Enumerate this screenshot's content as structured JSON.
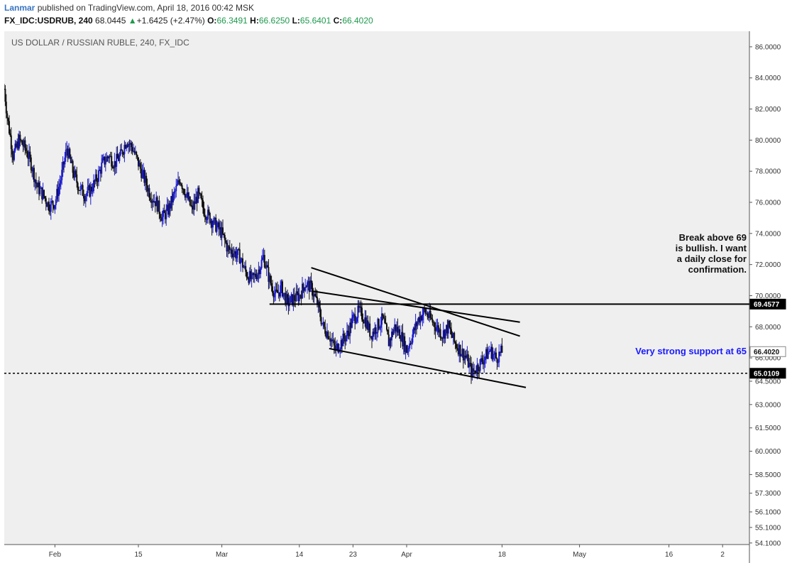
{
  "header": {
    "author": "Lanmar",
    "published": "published on TradingView.com, April 18, 2016 00:42 MSK",
    "symbol": "FX_IDC:USDRUB, 240",
    "last": "68.0445",
    "change_arrow": "▲",
    "change": "+1.6425 (+2.47%)",
    "o_label": "O:",
    "o_value": "66.3491",
    "h_label": "H:",
    "h_value": "66.6250",
    "l_label": "L:",
    "l_value": "65.6401",
    "c_label": "C:",
    "c_value": "66.4020"
  },
  "chart_data": {
    "type": "candlestick",
    "title": "US DOLLAR / RUSSIAN RUBLE, 240, FX_IDC",
    "ylim": [
      54.0,
      87.0
    ],
    "y_ticks": [
      {
        "value": 86.0,
        "label": "86.0000"
      },
      {
        "value": 84.0,
        "label": "84.0000"
      },
      {
        "value": 82.0,
        "label": "82.0000"
      },
      {
        "value": 80.0,
        "label": "80.0000"
      },
      {
        "value": 78.0,
        "label": "78.0000"
      },
      {
        "value": 76.0,
        "label": "76.0000"
      },
      {
        "value": 74.0,
        "label": "74.0000"
      },
      {
        "value": 72.0,
        "label": "72.0000"
      },
      {
        "value": 70.0,
        "label": "70.0000"
      },
      {
        "value": 68.0,
        "label": "68.0000"
      },
      {
        "value": 66.0,
        "label": "66.0000"
      },
      {
        "value": 64.5,
        "label": "64.5000"
      },
      {
        "value": 63.0,
        "label": "63.0000"
      },
      {
        "value": 61.5,
        "label": "61.5000"
      },
      {
        "value": 60.0,
        "label": "60.0000"
      },
      {
        "value": 58.5,
        "label": "58.5000"
      },
      {
        "value": 57.3,
        "label": "57.3000"
      },
      {
        "value": 56.1,
        "label": "56.1000"
      },
      {
        "value": 55.1,
        "label": "55.1000"
      },
      {
        "value": 54.1,
        "label": "54.1000"
      }
    ],
    "x_ticks": [
      {
        "label": "Feb",
        "day": 3
      },
      {
        "label": "15",
        "day": 17
      },
      {
        "label": "Mar",
        "day": 31
      },
      {
        "label": "14",
        "day": 44
      },
      {
        "label": "23",
        "day": 53
      },
      {
        "label": "Apr",
        "day": 62
      },
      {
        "label": "18",
        "day": 78
      },
      {
        "label": "May",
        "day": 91
      },
      {
        "label": "16",
        "day": 106
      },
      {
        "label": "2",
        "day": 115
      }
    ],
    "x_day_range": [
      -5.5,
      119.5
    ],
    "price_path": [
      [
        -5.5,
        83.3
      ],
      [
        -5,
        81.5
      ],
      [
        -4,
        79.0
      ],
      [
        -3,
        80.0
      ],
      [
        -2,
        79.5
      ],
      [
        -1,
        78.5
      ],
      [
        0,
        77.0
      ],
      [
        1,
        76.5
      ],
      [
        2,
        75.8
      ],
      [
        3,
        76.0
      ],
      [
        4,
        77.5
      ],
      [
        5,
        79.5
      ],
      [
        6,
        78.0
      ],
      [
        7,
        77.0
      ],
      [
        8,
        76.5
      ],
      [
        9,
        76.8
      ],
      [
        10,
        77.5
      ],
      [
        11,
        78.5
      ],
      [
        12,
        79.0
      ],
      [
        13,
        78.5
      ],
      [
        14,
        79.0
      ],
      [
        15,
        80.0
      ],
      [
        16,
        79.5
      ],
      [
        17,
        78.5
      ],
      [
        18,
        77.5
      ],
      [
        19,
        76.5
      ],
      [
        20,
        76.0
      ],
      [
        21,
        75.0
      ],
      [
        22,
        75.5
      ],
      [
        23,
        76.5
      ],
      [
        24,
        77.5
      ],
      [
        25,
        76.5
      ],
      [
        26,
        75.5
      ],
      [
        27,
        76.5
      ],
      [
        28,
        75.5
      ],
      [
        29,
        75.0
      ],
      [
        30,
        74.5
      ],
      [
        31,
        74.0
      ],
      [
        32,
        73.0
      ],
      [
        33,
        72.8
      ],
      [
        34,
        72.5
      ],
      [
        35,
        71.5
      ],
      [
        36,
        71.0
      ],
      [
        37,
        71.5
      ],
      [
        38,
        72.5
      ],
      [
        39,
        71.0
      ],
      [
        40,
        70.0
      ],
      [
        41,
        70.5
      ],
      [
        42,
        69.5
      ],
      [
        43,
        69.8
      ],
      [
        44,
        70.0
      ],
      [
        45,
        70.8
      ],
      [
        46,
        70.5
      ],
      [
        47,
        69.5
      ],
      [
        48,
        68.0
      ],
      [
        49,
        67.5
      ],
      [
        50,
        66.5
      ],
      [
        51,
        67.0
      ],
      [
        52,
        67.5
      ],
      [
        53,
        68.5
      ],
      [
        54,
        69.0
      ],
      [
        55,
        68.5
      ],
      [
        56,
        67.5
      ],
      [
        57,
        68.0
      ],
      [
        58,
        68.5
      ],
      [
        59,
        67.0
      ],
      [
        60,
        68.0
      ],
      [
        61,
        67.5
      ],
      [
        62,
        66.5
      ],
      [
        63,
        67.5
      ],
      [
        64,
        68.5
      ],
      [
        65,
        69.0
      ],
      [
        66,
        68.5
      ],
      [
        67,
        68.0
      ],
      [
        68,
        67.5
      ],
      [
        69,
        68.0
      ],
      [
        70,
        67.0
      ],
      [
        71,
        66.5
      ],
      [
        72,
        66.0
      ],
      [
        73,
        65.0
      ],
      [
        74,
        65.5
      ],
      [
        75,
        66.0
      ],
      [
        76,
        66.5
      ],
      [
        77,
        66.0
      ],
      [
        78,
        66.4
      ]
    ],
    "lines": [
      {
        "kind": "trendline",
        "from": [
          46,
          71.8
        ],
        "to": [
          81,
          67.4
        ]
      },
      {
        "kind": "trendline",
        "from": [
          46,
          70.3
        ],
        "to": [
          81,
          68.3
        ]
      },
      {
        "kind": "trendline",
        "from": [
          49,
          66.6
        ],
        "to": [
          82,
          64.1
        ]
      },
      {
        "kind": "resistance",
        "value": 69.4577,
        "from_day": 39
      },
      {
        "kind": "support",
        "value": 65.0109,
        "from_day": -5.5,
        "dashed": true
      }
    ],
    "price_badges": [
      {
        "label": "69.4577",
        "value": 69.4577,
        "style": "black"
      },
      {
        "label": "66.4020",
        "value": 66.402,
        "style": "white"
      },
      {
        "label": "65.0109",
        "value": 65.0109,
        "style": "black"
      }
    ],
    "annotations": {
      "resistance_note": [
        "Break above 69",
        "is bullish. I want",
        "a daily close for",
        "confirmation."
      ],
      "support_note": "Very strong  support at 65"
    },
    "colors": {
      "background": "#efefef",
      "up_candle": "#1a1acc",
      "down_candle": "#111111",
      "line": "#000000",
      "support_text": "#1a1aff",
      "header_up": "#1e9a4d",
      "author": "#3974c3"
    }
  }
}
